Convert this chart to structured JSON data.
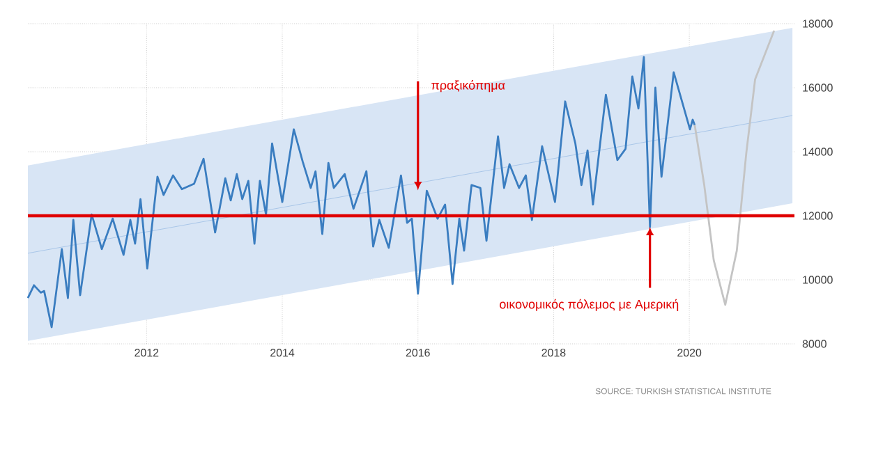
{
  "chart_data": {
    "type": "line",
    "xlim": [
      2010.25,
      2021.55
    ],
    "ylim": [
      8000,
      18000
    ],
    "xticks": [
      2012,
      2014,
      2016,
      2018,
      2020
    ],
    "yticks": [
      8000,
      10000,
      12000,
      14000,
      16000,
      18000
    ],
    "grid": true,
    "series": [
      {
        "type": "line",
        "color": "#a9c6e8",
        "x": [
          2010.25,
          2021.52
        ],
        "values": [
          10830,
          15130
        ],
        "lower": [
          8090,
          12390
        ],
        "upper": [
          13570,
          17870
        ]
      },
      {
        "color": "#3a7dc0",
        "x": [
          2010.25,
          2010.34,
          2010.44,
          2010.49,
          2010.6,
          2010.75,
          2010.84,
          2010.92,
          2011.02,
          2011.19,
          2011.34,
          2011.5,
          2011.66,
          2011.76,
          2011.83,
          2011.91,
          2012.01,
          2012.16,
          2012.25,
          2012.39,
          2012.52,
          2012.7,
          2012.84,
          2013.01,
          2013.16,
          2013.24,
          2013.33,
          2013.41,
          2013.5,
          2013.59,
          2013.67,
          2013.76,
          2013.85,
          2014.0,
          2014.17,
          2014.3,
          2014.42,
          2014.49,
          2014.59,
          2014.68,
          2014.76,
          2014.92,
          2015.05,
          2015.24,
          2015.34,
          2015.43,
          2015.57,
          2015.75,
          2015.84,
          2015.91,
          2016.0,
          2016.13,
          2016.29,
          2016.4,
          2016.51,
          2016.61,
          2016.68,
          2016.79,
          2016.92,
          2017.01,
          2017.18,
          2017.27,
          2017.35,
          2017.49,
          2017.59,
          2017.68,
          2017.83,
          2018.02,
          2018.17,
          2018.32,
          2018.41,
          2018.5,
          2018.58,
          2018.77,
          2018.94,
          2019.06,
          2019.16,
          2019.25,
          2019.33,
          2019.42,
          2019.5,
          2019.59,
          2019.77,
          2020.01,
          2020.05,
          2020.08
        ],
        "values": [
          9430,
          9830,
          9600,
          9650,
          8520,
          10960,
          9430,
          11870,
          9520,
          12040,
          10960,
          11910,
          10780,
          11870,
          11130,
          12520,
          10350,
          13220,
          12650,
          13260,
          12830,
          13000,
          13780,
          11480,
          13170,
          12480,
          13300,
          12520,
          13090,
          11130,
          13090,
          12040,
          14260,
          12430,
          14700,
          13700,
          12870,
          13390,
          11430,
          13650,
          12870,
          13300,
          12220,
          13390,
          11040,
          11870,
          11000,
          13260,
          11780,
          11910,
          9570,
          12780,
          11910,
          12350,
          9870,
          11910,
          10910,
          12960,
          12870,
          11220,
          14480,
          12870,
          13610,
          12870,
          13260,
          11870,
          14170,
          12430,
          15570,
          14260,
          12960,
          14040,
          12350,
          15780,
          13740,
          14090,
          16350,
          15350,
          16960,
          11650,
          16000,
          13220,
          16480,
          14700,
          15000,
          14830
        ]
      },
      {
        "color": "#c4c4c4",
        "x": [
          2020.08,
          2020.22,
          2020.36,
          2020.53,
          2020.7,
          2020.84,
          2020.97,
          2021.25
        ],
        "values": [
          14830,
          12960,
          10610,
          9220,
          10910,
          13960,
          16260,
          17780
        ]
      }
    ],
    "ref_lines": [
      {
        "axis": "y",
        "value": 12000,
        "color": "#e00000"
      }
    ],
    "annotations": [
      {
        "text": "πραξικόπημα",
        "x": 2016.0,
        "y": 12800
      },
      {
        "text": "οικονομικός πόλεμος με Αμερική",
        "x": 2019.42,
        "y": 11650
      },
      "SOURCE: TURKISH STATISTICAL INSTITUTE"
    ]
  }
}
